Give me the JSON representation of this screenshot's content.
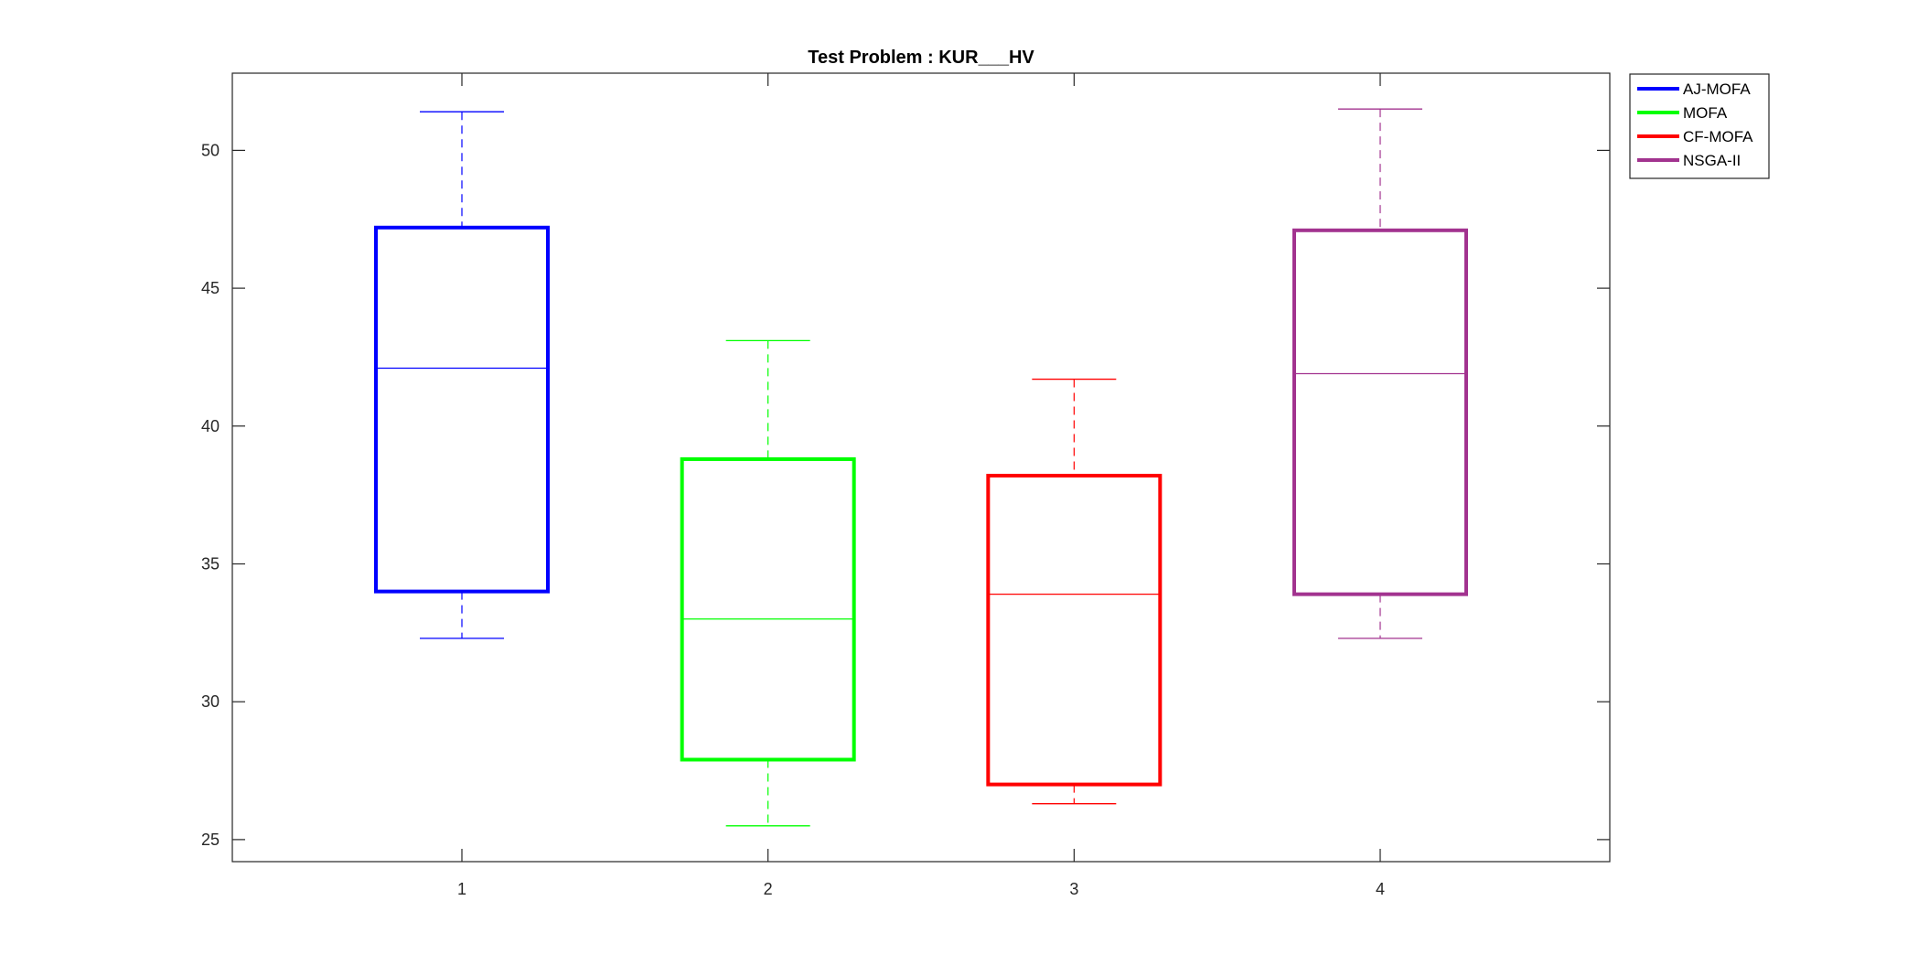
{
  "chart_data": {
    "type": "boxplot",
    "title": "Test Problem : KUR___HV",
    "xlabel": "",
    "ylabel": "",
    "categories": [
      "1",
      "2",
      "3",
      "4"
    ],
    "ylim": [
      24.2,
      52.8
    ],
    "yticks": [
      25,
      30,
      35,
      40,
      45,
      50
    ],
    "yticklabels": [
      "25",
      "30",
      "35",
      "40",
      "45",
      "50"
    ],
    "grid": false,
    "legend_position": "outside-top-right",
    "series": [
      {
        "name": "AJ-MOFA",
        "color": "#0000ff",
        "min": 32.3,
        "q1": 34.0,
        "median": 42.1,
        "q3": 47.2,
        "max": 51.4
      },
      {
        "name": "MOFA",
        "color": "#00ff00",
        "min": 25.5,
        "q1": 27.9,
        "median": 33.0,
        "q3": 38.8,
        "max": 43.1
      },
      {
        "name": "CF-MOFA",
        "color": "#ff0000",
        "min": 26.3,
        "q1": 27.0,
        "median": 33.9,
        "q3": 38.2,
        "max": 41.7
      },
      {
        "name": "NSGA-II",
        "color": "#a2338f",
        "min": 32.3,
        "q1": 33.9,
        "median": 41.9,
        "q3": 47.1,
        "max": 51.5
      }
    ]
  }
}
